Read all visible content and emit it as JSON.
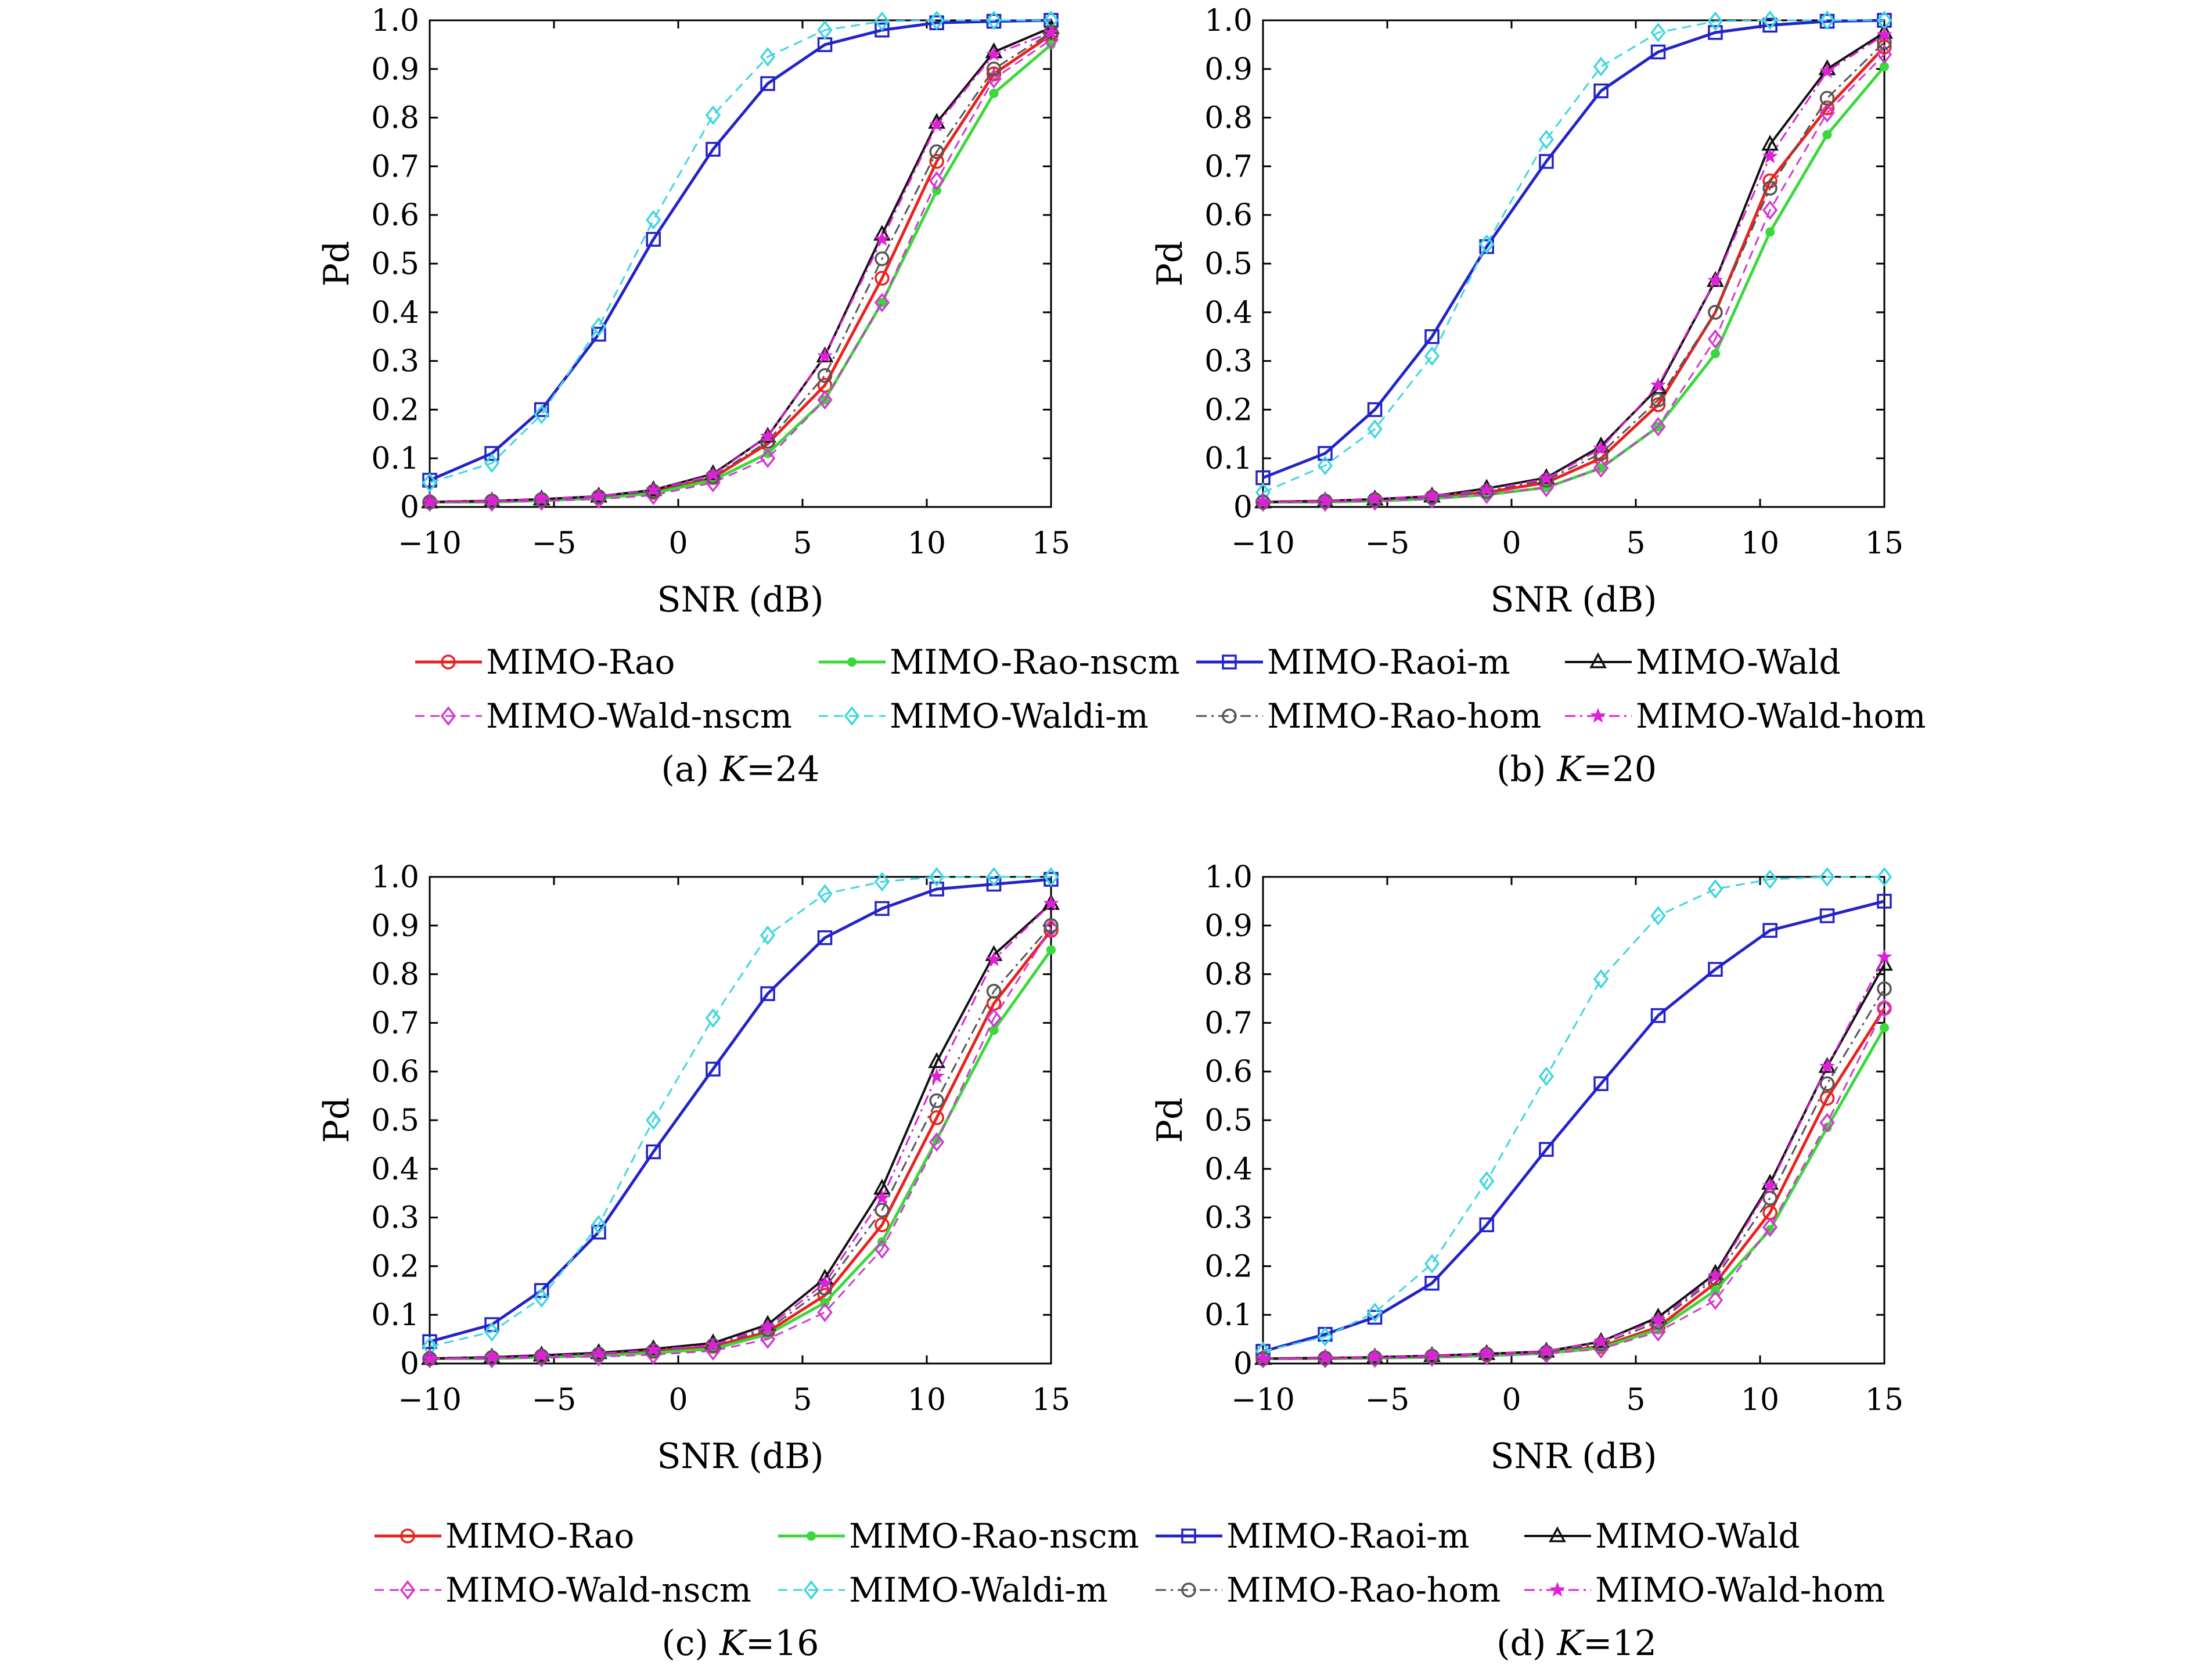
{
  "series_styles": [
    {
      "name": "MIMO-Rao",
      "color": "#e8231e",
      "marker": "circle",
      "dash": "solid",
      "width": 5
    },
    {
      "name": "MIMO-Rao-nscm",
      "color": "#3ad83a",
      "marker": "dot",
      "dash": "solid",
      "width": 5
    },
    {
      "name": "MIMO-Raoi-m",
      "color": "#2323c8",
      "marker": "square",
      "dash": "solid",
      "width": 5
    },
    {
      "name": "MIMO-Wald",
      "color": "#111111",
      "marker": "triangle",
      "dash": "solid",
      "width": 4
    },
    {
      "name": "MIMO-Wald-nscm",
      "color": "#d23ad2",
      "marker": "diamond",
      "dash": "dashed",
      "width": 3
    },
    {
      "name": "MIMO-Waldi-m",
      "color": "#3fd6e0",
      "marker": "diamond",
      "dash": "dashed",
      "width": 3
    },
    {
      "name": "MIMO-Rao-hom",
      "color": "#555555",
      "marker": "circle",
      "dash": "dashdot",
      "width": 3
    },
    {
      "name": "MIMO-Wald-hom",
      "color": "#e020d8",
      "marker": "star",
      "dash": "dashdot",
      "width": 3
    }
  ],
  "chart_data": [
    {
      "type": "line",
      "caption_prefix": "(a) ",
      "caption_var": "K",
      "caption_suffix": "=24",
      "xlabel": "SNR (dB)",
      "ylabel": "Pd",
      "xlim": [
        -10,
        15
      ],
      "ylim": [
        0,
        1
      ],
      "xticks": [
        "−10",
        "−5",
        "0",
        "5",
        "10",
        "15"
      ],
      "yticks": [
        "0",
        "0.1",
        "0.2",
        "0.3",
        "0.4",
        "0.5",
        "0.6",
        "0.7",
        "0.8",
        "0.9",
        "1.0"
      ],
      "grid": false,
      "x": [
        -10,
        -7.5,
        -5.5,
        -3.2,
        -1,
        1.4,
        3.6,
        5.9,
        8.2,
        10.4,
        12.7,
        15
      ],
      "series": [
        {
          "name": "MIMO-Rao",
          "values": [
            0.01,
            0.012,
            0.015,
            0.02,
            0.03,
            0.06,
            0.13,
            0.25,
            0.47,
            0.71,
            0.89,
            0.97
          ]
        },
        {
          "name": "MIMO-Rao-nscm",
          "values": [
            0.01,
            0.01,
            0.013,
            0.018,
            0.028,
            0.055,
            0.11,
            0.22,
            0.42,
            0.65,
            0.85,
            0.95
          ]
        },
        {
          "name": "MIMO-Raoi-m",
          "values": [
            0.055,
            0.11,
            0.2,
            0.355,
            0.55,
            0.735,
            0.87,
            0.95,
            0.98,
            0.995,
            0.998,
            1.0
          ]
        },
        {
          "name": "MIMO-Wald",
          "values": [
            0.01,
            0.012,
            0.016,
            0.022,
            0.035,
            0.068,
            0.145,
            0.31,
            0.56,
            0.79,
            0.935,
            0.985
          ]
        },
        {
          "name": "MIMO-Wald-nscm",
          "values": [
            0.01,
            0.01,
            0.012,
            0.016,
            0.024,
            0.05,
            0.1,
            0.22,
            0.42,
            0.67,
            0.88,
            0.96
          ]
        },
        {
          "name": "MIMO-Waldi-m",
          "values": [
            0.05,
            0.09,
            0.19,
            0.37,
            0.59,
            0.805,
            0.925,
            0.98,
            0.998,
            1.0,
            1.0,
            1.0
          ]
        },
        {
          "name": "MIMO-Rao-hom",
          "values": [
            0.01,
            0.012,
            0.015,
            0.021,
            0.032,
            0.062,
            0.135,
            0.27,
            0.51,
            0.73,
            0.9,
            0.975
          ]
        },
        {
          "name": "MIMO-Wald-hom",
          "values": [
            0.01,
            0.012,
            0.016,
            0.022,
            0.035,
            0.066,
            0.145,
            0.31,
            0.55,
            0.785,
            0.93,
            0.975
          ]
        }
      ]
    },
    {
      "type": "line",
      "caption_prefix": "(b) ",
      "caption_var": "K",
      "caption_suffix": "=20",
      "xlabel": "SNR (dB)",
      "ylabel": "Pd",
      "xlim": [
        -10,
        15
      ],
      "ylim": [
        0,
        1
      ],
      "xticks": [
        "−10",
        "−5",
        "0",
        "5",
        "10",
        "15"
      ],
      "yticks": [
        "0",
        "0.1",
        "0.2",
        "0.3",
        "0.4",
        "0.5",
        "0.6",
        "0.7",
        "0.8",
        "0.9",
        "1.0"
      ],
      "grid": false,
      "x": [
        -10,
        -7.5,
        -5.5,
        -3.2,
        -1,
        1.4,
        3.6,
        5.9,
        8.2,
        10.4,
        12.7,
        15
      ],
      "series": [
        {
          "name": "MIMO-Rao",
          "values": [
            0.01,
            0.012,
            0.015,
            0.02,
            0.03,
            0.05,
            0.1,
            0.21,
            0.4,
            0.67,
            0.82,
            0.945
          ]
        },
        {
          "name": "MIMO-Rao-nscm",
          "values": [
            0.01,
            0.01,
            0.012,
            0.017,
            0.025,
            0.04,
            0.08,
            0.165,
            0.315,
            0.565,
            0.765,
            0.905
          ]
        },
        {
          "name": "MIMO-Raoi-m",
          "values": [
            0.06,
            0.11,
            0.2,
            0.35,
            0.535,
            0.71,
            0.855,
            0.935,
            0.975,
            0.99,
            0.998,
            1.0
          ]
        },
        {
          "name": "MIMO-Wald",
          "values": [
            0.01,
            0.012,
            0.016,
            0.022,
            0.038,
            0.06,
            0.125,
            0.245,
            0.465,
            0.745,
            0.9,
            0.975
          ]
        },
        {
          "name": "MIMO-Wald-nscm",
          "values": [
            0.01,
            0.01,
            0.012,
            0.017,
            0.026,
            0.04,
            0.08,
            0.165,
            0.345,
            0.61,
            0.81,
            0.93
          ]
        },
        {
          "name": "MIMO-Waldi-m",
          "values": [
            0.03,
            0.085,
            0.16,
            0.31,
            0.54,
            0.755,
            0.905,
            0.975,
            0.998,
            1.0,
            1.0,
            1.0
          ]
        },
        {
          "name": "MIMO-Rao-hom",
          "values": [
            0.01,
            0.012,
            0.015,
            0.02,
            0.032,
            0.055,
            0.11,
            0.22,
            0.4,
            0.655,
            0.84,
            0.955
          ]
        },
        {
          "name": "MIMO-Wald-hom",
          "values": [
            0.01,
            0.012,
            0.016,
            0.022,
            0.035,
            0.058,
            0.12,
            0.25,
            0.465,
            0.72,
            0.895,
            0.97
          ]
        }
      ]
    },
    {
      "type": "line",
      "caption_prefix": "(c) ",
      "caption_var": "K",
      "caption_suffix": "=16",
      "xlabel": "SNR (dB)",
      "ylabel": "Pd",
      "xlim": [
        -10,
        15
      ],
      "ylim": [
        0,
        1
      ],
      "xticks": [
        "−10",
        "−5",
        "0",
        "5",
        "10",
        "15"
      ],
      "yticks": [
        "0",
        "0.1",
        "0.2",
        "0.3",
        "0.4",
        "0.5",
        "0.6",
        "0.7",
        "0.8",
        "0.9",
        "1.0"
      ],
      "grid": false,
      "x": [
        -10,
        -7.5,
        -5.5,
        -3.2,
        -1,
        1.4,
        3.6,
        5.9,
        8.2,
        10.4,
        12.7,
        15
      ],
      "series": [
        {
          "name": "MIMO-Rao",
          "values": [
            0.01,
            0.012,
            0.015,
            0.018,
            0.025,
            0.035,
            0.065,
            0.14,
            0.285,
            0.505,
            0.74,
            0.89
          ]
        },
        {
          "name": "MIMO-Rao-nscm",
          "values": [
            0.01,
            0.01,
            0.013,
            0.016,
            0.022,
            0.03,
            0.06,
            0.125,
            0.25,
            0.46,
            0.685,
            0.85
          ]
        },
        {
          "name": "MIMO-Raoi-m",
          "values": [
            0.045,
            0.08,
            0.15,
            0.27,
            0.435,
            0.605,
            0.76,
            0.875,
            0.935,
            0.975,
            0.985,
            0.995
          ]
        },
        {
          "name": "MIMO-Wald",
          "values": [
            0.01,
            0.013,
            0.017,
            0.022,
            0.03,
            0.042,
            0.08,
            0.175,
            0.36,
            0.62,
            0.84,
            0.945
          ]
        },
        {
          "name": "MIMO-Wald-nscm",
          "values": [
            0.01,
            0.01,
            0.012,
            0.014,
            0.018,
            0.026,
            0.05,
            0.105,
            0.235,
            0.455,
            0.71,
            0.895
          ]
        },
        {
          "name": "MIMO-Waldi-m",
          "values": [
            0.035,
            0.065,
            0.135,
            0.285,
            0.5,
            0.71,
            0.88,
            0.965,
            0.99,
            1.0,
            1.0,
            1.0
          ]
        },
        {
          "name": "MIMO-Rao-hom",
          "values": [
            0.01,
            0.012,
            0.015,
            0.019,
            0.026,
            0.037,
            0.07,
            0.155,
            0.315,
            0.54,
            0.765,
            0.9
          ]
        },
        {
          "name": "MIMO-Wald-hom",
          "values": [
            0.01,
            0.012,
            0.016,
            0.02,
            0.028,
            0.038,
            0.075,
            0.165,
            0.34,
            0.59,
            0.83,
            0.945
          ]
        }
      ]
    },
    {
      "type": "line",
      "caption_prefix": "(d) ",
      "caption_var": "K",
      "caption_suffix": "=12",
      "xlabel": "SNR (dB)",
      "ylabel": "Pd",
      "xlim": [
        -10,
        15
      ],
      "ylim": [
        0,
        1
      ],
      "xticks": [
        "−10",
        "−5",
        "0",
        "5",
        "10",
        "15"
      ],
      "yticks": [
        "0",
        "0.1",
        "0.2",
        "0.3",
        "0.4",
        "0.5",
        "0.6",
        "0.7",
        "0.8",
        "0.9",
        "1.0"
      ],
      "grid": false,
      "x": [
        -10,
        -7.5,
        -5.5,
        -3.2,
        -1,
        1.4,
        3.6,
        5.9,
        8.2,
        10.4,
        12.7,
        15
      ],
      "series": [
        {
          "name": "MIMO-Rao",
          "values": [
            0.01,
            0.011,
            0.012,
            0.014,
            0.018,
            0.022,
            0.035,
            0.075,
            0.165,
            0.31,
            0.545,
            0.73
          ]
        },
        {
          "name": "MIMO-Rao-nscm",
          "values": [
            0.01,
            0.01,
            0.011,
            0.013,
            0.016,
            0.021,
            0.032,
            0.07,
            0.15,
            0.275,
            0.485,
            0.69
          ]
        },
        {
          "name": "MIMO-Raoi-m",
          "values": [
            0.025,
            0.06,
            0.095,
            0.165,
            0.285,
            0.44,
            0.575,
            0.715,
            0.81,
            0.89,
            0.92,
            0.95
          ]
        },
        {
          "name": "MIMO-Wald",
          "values": [
            0.01,
            0.011,
            0.013,
            0.016,
            0.02,
            0.025,
            0.045,
            0.095,
            0.185,
            0.37,
            0.61,
            0.82
          ]
        },
        {
          "name": "MIMO-Wald-nscm",
          "values": [
            0.01,
            0.01,
            0.011,
            0.013,
            0.016,
            0.02,
            0.03,
            0.065,
            0.13,
            0.28,
            0.495,
            0.73
          ]
        },
        {
          "name": "MIMO-Waldi-m",
          "values": [
            0.025,
            0.055,
            0.105,
            0.205,
            0.375,
            0.59,
            0.79,
            0.92,
            0.975,
            0.995,
            1.0,
            1.0
          ]
        },
        {
          "name": "MIMO-Rao-hom",
          "values": [
            0.01,
            0.011,
            0.012,
            0.015,
            0.019,
            0.023,
            0.04,
            0.085,
            0.175,
            0.34,
            0.575,
            0.77
          ]
        },
        {
          "name": "MIMO-Wald-hom",
          "values": [
            0.01,
            0.011,
            0.013,
            0.016,
            0.02,
            0.025,
            0.045,
            0.09,
            0.18,
            0.365,
            0.61,
            0.835
          ]
        }
      ]
    }
  ]
}
